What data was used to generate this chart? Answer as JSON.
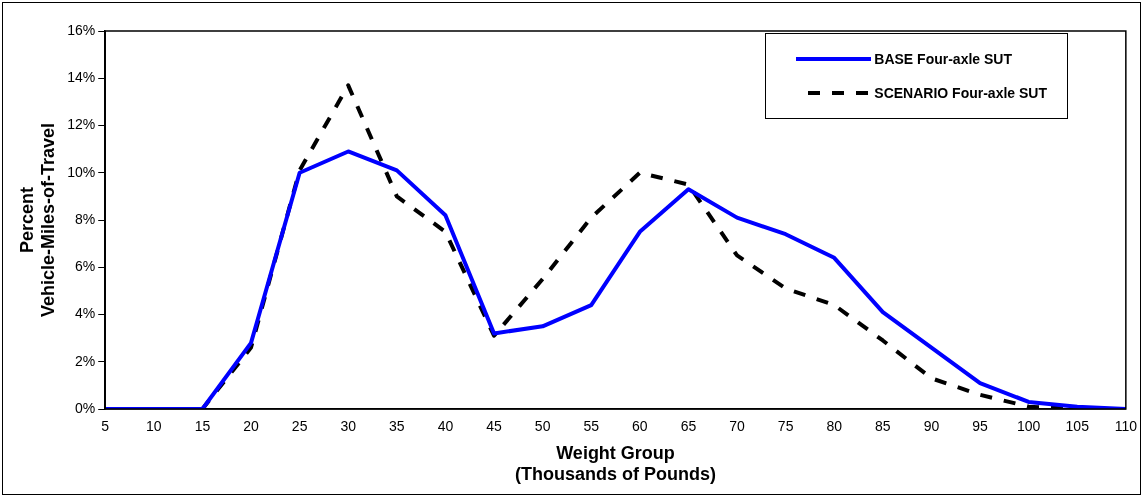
{
  "chart_data": {
    "type": "line",
    "xlabel": "Weight Group\n(Thousands of Pounds)",
    "ylabel": "Percent\nVehicle-Miles-of-Travel",
    "categories": [
      "5",
      "10",
      "15",
      "20",
      "25",
      "30",
      "35",
      "40",
      "45",
      "50",
      "55",
      "60",
      "65",
      "70",
      "75",
      "80",
      "85",
      "90",
      "95",
      "100",
      "105",
      "110"
    ],
    "series": [
      {
        "name": "BASE Four-axle SUT",
        "color": "#0000ff",
        "line_style": "solid",
        "values": [
          0,
          0,
          0,
          2.8,
          10.0,
          10.9,
          10.1,
          8.2,
          3.2,
          3.5,
          4.4,
          7.5,
          9.3,
          8.1,
          7.4,
          6.4,
          4.1,
          2.6,
          1.1,
          0.3,
          0.1,
          0
        ]
      },
      {
        "name": "SCENARIO Four-axle SUT",
        "color": "#000000",
        "line_style": "dashed",
        "values": [
          0,
          0,
          0,
          2.6,
          10.1,
          13.7,
          9.0,
          7.5,
          3.1,
          5.5,
          8.1,
          10.0,
          9.5,
          6.5,
          5.1,
          4.4,
          2.9,
          1.3,
          0.6,
          0.1,
          0,
          0
        ]
      }
    ],
    "ylim": [
      0,
      16
    ],
    "yticks": [
      {
        "value": 0,
        "label": "0%"
      },
      {
        "value": 2,
        "label": "2%"
      },
      {
        "value": 4,
        "label": "4%"
      },
      {
        "value": 6,
        "label": "6%"
      },
      {
        "value": 8,
        "label": "8%"
      },
      {
        "value": 10,
        "label": "10%"
      },
      {
        "value": 12,
        "label": "12%"
      },
      {
        "value": 14,
        "label": "14%"
      },
      {
        "value": 16,
        "label": "16%"
      }
    ],
    "grid": false,
    "legend": "top right",
    "marker": "none"
  }
}
